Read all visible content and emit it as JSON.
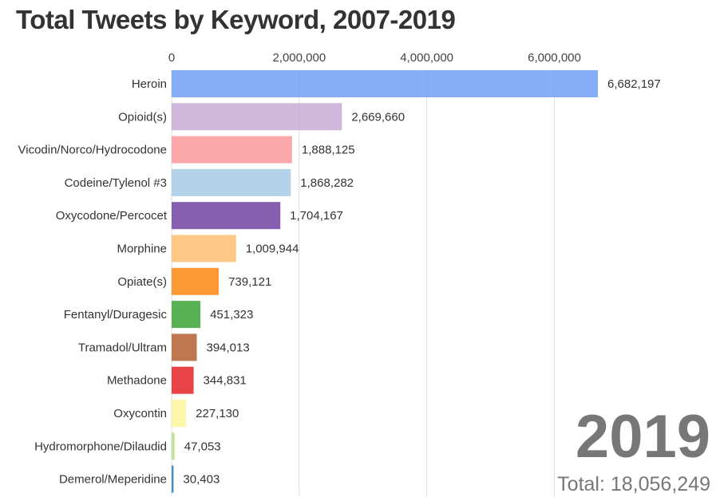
{
  "chart_data": {
    "type": "bar",
    "orientation": "horizontal",
    "title": "Total Tweets by Keyword, 2007-2019",
    "xlim": [
      0,
      6682197
    ],
    "xticks": [
      0,
      2000000,
      4000000,
      6000000
    ],
    "xtick_labels": [
      "0",
      "2,000,000",
      "4,000,000",
      "6,000,000"
    ],
    "grid": true,
    "categories": [
      "Heroin",
      "Opioid(s)",
      "Vicodin/Norco/Hydrocodone",
      "Codeine/Tylenol #3",
      "Oxycodone/Percocet",
      "Morphine",
      "Opiate(s)",
      "Fentanyl/Duragesic",
      "Tramadol/Ultram",
      "Methadone",
      "Oxycontin",
      "Hydromorphone/Dilaudid",
      "Demerol/Meperidine"
    ],
    "values": [
      6682197,
      2669660,
      1888125,
      1868282,
      1704167,
      1009944,
      739121,
      451323,
      394013,
      344831,
      227130,
      47053,
      30403
    ],
    "value_labels": [
      "6,682,197",
      "2,669,660",
      "1,888,125",
      "1,868,282",
      "1,704,167",
      "1,009,944",
      "739,121",
      "451,323",
      "394,013",
      "344,831",
      "227,130",
      "47,053",
      "30,403"
    ],
    "colors": [
      "#6b9cf7",
      "#c5a8d4",
      "#fb9597",
      "#a3c8e3",
      "#6a3b9e",
      "#fdbc6a",
      "#fd8208",
      "#33a02c",
      "#b15928",
      "#e31a1c",
      "#fdf596",
      "#b2df8a",
      "#1f78b4"
    ],
    "year": "2019",
    "total_label": "Total: 18,056,249"
  }
}
